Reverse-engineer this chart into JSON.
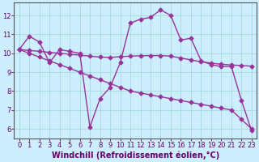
{
  "title": "",
  "xlabel": "Windchill (Refroidissement éolien,°C)",
  "ylabel": "",
  "bg_color": "#cceeff",
  "grid_color": "#aadddd",
  "line_color": "#993399",
  "xlim": [
    -0.5,
    23.5
  ],
  "ylim": [
    5.5,
    12.7
  ],
  "xticks": [
    0,
    1,
    2,
    3,
    4,
    5,
    6,
    7,
    8,
    9,
    10,
    11,
    12,
    13,
    14,
    15,
    16,
    17,
    18,
    19,
    20,
    21,
    22,
    23
  ],
  "yticks": [
    6,
    7,
    8,
    9,
    10,
    11,
    12
  ],
  "series": [
    {
      "x": [
        0,
        1,
        2,
        3,
        4,
        5,
        6,
        7,
        8,
        9,
        10,
        11,
        12,
        13,
        14,
        15,
        16,
        17,
        18,
        19,
        20,
        21,
        22,
        23
      ],
      "y": [
        10.2,
        10.9,
        10.6,
        9.5,
        10.2,
        10.1,
        10.0,
        6.1,
        7.6,
        8.2,
        9.5,
        11.6,
        11.8,
        11.9,
        12.3,
        12.0,
        10.7,
        10.8,
        9.6,
        9.4,
        9.3,
        9.3,
        7.5,
        5.9
      ]
    },
    {
      "x": [
        0,
        1,
        2,
        3,
        4,
        5,
        6,
        7,
        8,
        9,
        10,
        11,
        12,
        13,
        14,
        15,
        16,
        17,
        18,
        19,
        20,
        21,
        22,
        23
      ],
      "y": [
        10.2,
        10.15,
        10.1,
        10.05,
        10.0,
        9.95,
        9.9,
        9.85,
        9.8,
        9.78,
        9.82,
        9.85,
        9.87,
        9.88,
        9.88,
        9.85,
        9.75,
        9.65,
        9.55,
        9.48,
        9.42,
        9.38,
        9.35,
        9.32
      ]
    },
    {
      "x": [
        0,
        1,
        2,
        3,
        4,
        5,
        6,
        7,
        8,
        9,
        10,
        11,
        12,
        13,
        14,
        15,
        16,
        17,
        18,
        19,
        20,
        21,
        22,
        23
      ],
      "y": [
        10.2,
        10.0,
        9.8,
        9.6,
        9.4,
        9.2,
        9.0,
        8.8,
        8.6,
        8.4,
        8.2,
        8.0,
        7.9,
        7.8,
        7.7,
        7.6,
        7.5,
        7.4,
        7.3,
        7.2,
        7.1,
        7.0,
        6.5,
        6.0
      ]
    }
  ],
  "marker": "D",
  "markersize": 2.5,
  "linewidth": 1.0,
  "xlabel_fontsize": 7,
  "tick_fontsize": 6,
  "axis_color": "#660066",
  "spine_color": "#555555"
}
